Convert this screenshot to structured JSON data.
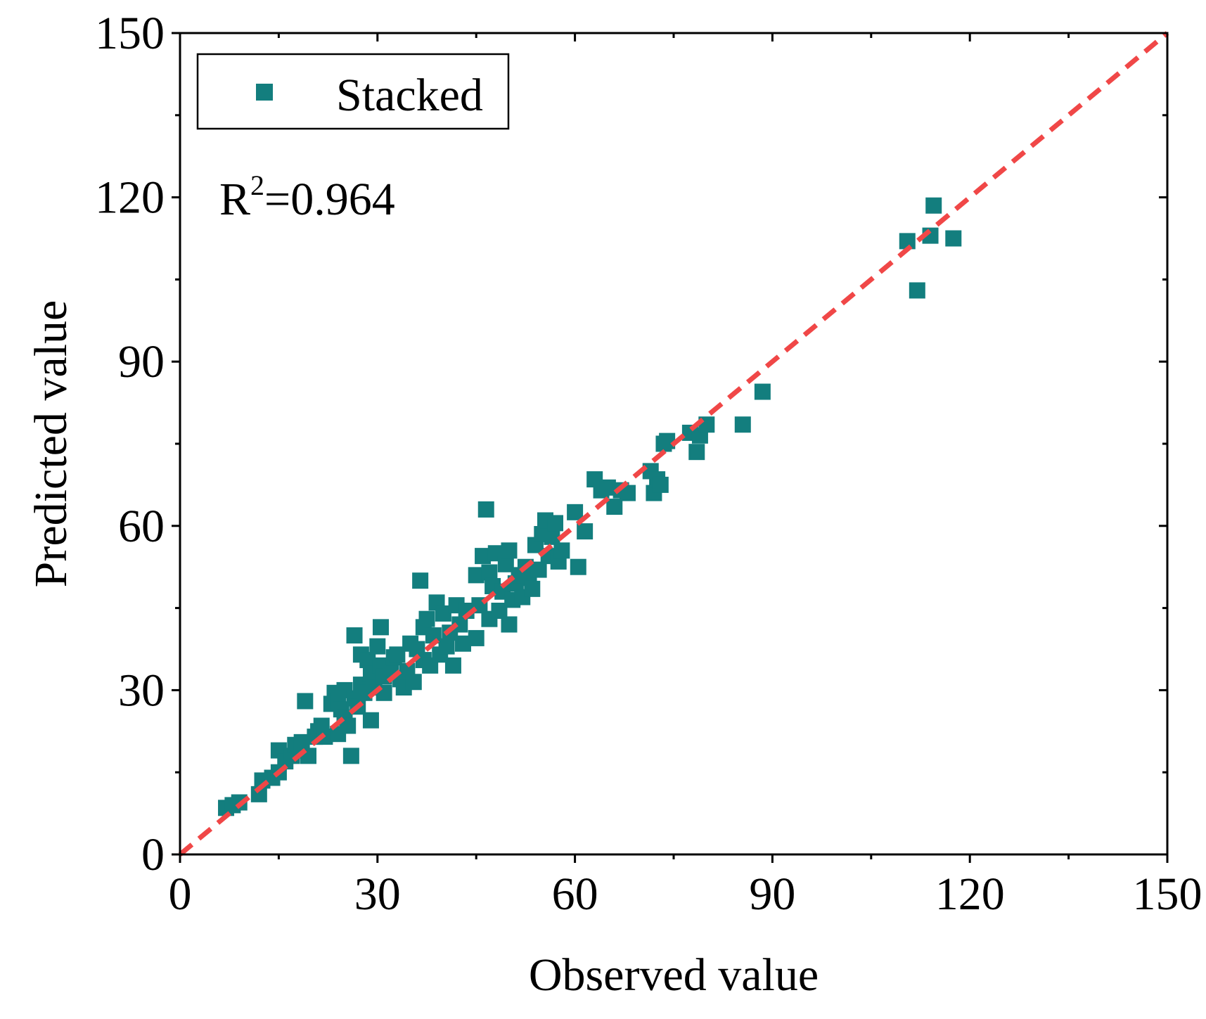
{
  "chart_data": {
    "type": "scatter",
    "xlabel": "Observed value",
    "ylabel": "Predicted value",
    "xlim": [
      0,
      150
    ],
    "ylim": [
      0,
      150
    ],
    "xticks": [
      0,
      30,
      60,
      90,
      120,
      150
    ],
    "yticks": [
      0,
      30,
      60,
      90,
      120,
      150
    ],
    "grid": false,
    "legend": {
      "placement": "top-left",
      "entries": [
        "Stacked"
      ]
    },
    "annotation": {
      "base": "R",
      "sup": "2",
      "rest": "=0.964"
    },
    "colors": {
      "series": "#137E7E",
      "reference_line": "#F04747"
    },
    "reference_line": {
      "style": "dashed",
      "from": [
        0,
        0
      ],
      "to": [
        150,
        150
      ]
    },
    "series": [
      {
        "name": "Stacked",
        "marker": "square",
        "points": [
          [
            7,
            8.5
          ],
          [
            8,
            9
          ],
          [
            9,
            9.5
          ],
          [
            12,
            11
          ],
          [
            12.5,
            13.5
          ],
          [
            14,
            14
          ],
          [
            15,
            15
          ],
          [
            15,
            19
          ],
          [
            16,
            17
          ],
          [
            17,
            18
          ],
          [
            17.5,
            20
          ],
          [
            18,
            19
          ],
          [
            18.5,
            20.5
          ],
          [
            19,
            28
          ],
          [
            19.5,
            18
          ],
          [
            20.5,
            21.5
          ],
          [
            21,
            22.5
          ],
          [
            21.5,
            23.5
          ],
          [
            22,
            21.5
          ],
          [
            23,
            27.5
          ],
          [
            23.5,
            29.5
          ],
          [
            24,
            22
          ],
          [
            24,
            28
          ],
          [
            24.5,
            26.5
          ],
          [
            25,
            25
          ],
          [
            25,
            30
          ],
          [
            25.5,
            23.5
          ],
          [
            26,
            18
          ],
          [
            26.5,
            28.5
          ],
          [
            26.5,
            40
          ],
          [
            27,
            27
          ],
          [
            27.5,
            31
          ],
          [
            27.5,
            36.5
          ],
          [
            28,
            29.5
          ],
          [
            28.5,
            35.5
          ],
          [
            29,
            24.5
          ],
          [
            29,
            33
          ],
          [
            29.5,
            30.5
          ],
          [
            30,
            38
          ],
          [
            30.5,
            34.5
          ],
          [
            30.5,
            41.5
          ],
          [
            31,
            29.5
          ],
          [
            31,
            32.5
          ],
          [
            32,
            34
          ],
          [
            32.5,
            36
          ],
          [
            33,
            36.5
          ],
          [
            33.5,
            32
          ],
          [
            34,
            30.5
          ],
          [
            34.5,
            33.5
          ],
          [
            35,
            38.5
          ],
          [
            35.5,
            31.5
          ],
          [
            36,
            37.5
          ],
          [
            36.5,
            50
          ],
          [
            37,
            35.5
          ],
          [
            37,
            41.5
          ],
          [
            37.5,
            43
          ],
          [
            38,
            34.5
          ],
          [
            38.5,
            40
          ],
          [
            39,
            46
          ],
          [
            39.5,
            36.5
          ],
          [
            40,
            44
          ],
          [
            40.5,
            38
          ],
          [
            41,
            40.5
          ],
          [
            41.5,
            34.5
          ],
          [
            42,
            45.5
          ],
          [
            42.5,
            42
          ],
          [
            43,
            38.5
          ],
          [
            43.5,
            44.5
          ],
          [
            45,
            51
          ],
          [
            45,
            39.5
          ],
          [
            45.5,
            45.5
          ],
          [
            46,
            54.5
          ],
          [
            46.5,
            63
          ],
          [
            47,
            43
          ],
          [
            47,
            51.5
          ],
          [
            47.5,
            49
          ],
          [
            48,
            55
          ],
          [
            48.5,
            44.5
          ],
          [
            49,
            48
          ],
          [
            49.5,
            53
          ],
          [
            50,
            55.5
          ],
          [
            50,
            42
          ],
          [
            50.5,
            46.5
          ],
          [
            51,
            49.5
          ],
          [
            51.5,
            51
          ],
          [
            52,
            47
          ],
          [
            52.5,
            52.5
          ],
          [
            53,
            50.5
          ],
          [
            53.5,
            48.5
          ],
          [
            54,
            56.5
          ],
          [
            54.5,
            52
          ],
          [
            55,
            58.5
          ],
          [
            55.5,
            61
          ],
          [
            56,
            54.5
          ],
          [
            56.5,
            58
          ],
          [
            57,
            60.5
          ],
          [
            57.5,
            53.5
          ],
          [
            58,
            55.5
          ],
          [
            60,
            62.5
          ],
          [
            60.5,
            52.5
          ],
          [
            61.5,
            59
          ],
          [
            63,
            68.5
          ],
          [
            64,
            66.5
          ],
          [
            65,
            67
          ],
          [
            66,
            63.5
          ],
          [
            67,
            66.5
          ],
          [
            68,
            66
          ],
          [
            71.5,
            70
          ],
          [
            72,
            66
          ],
          [
            72.5,
            68.5
          ],
          [
            73,
            67.5
          ],
          [
            73.5,
            75
          ],
          [
            74,
            75.5
          ],
          [
            77.5,
            77
          ],
          [
            78.5,
            73.5
          ],
          [
            79,
            76.5
          ],
          [
            80,
            78.5
          ],
          [
            85.5,
            78.5
          ],
          [
            88.5,
            84.5
          ],
          [
            110.5,
            112
          ],
          [
            112,
            103
          ],
          [
            114,
            113
          ],
          [
            114.5,
            118.5
          ],
          [
            117.5,
            112.5
          ]
        ]
      }
    ]
  }
}
